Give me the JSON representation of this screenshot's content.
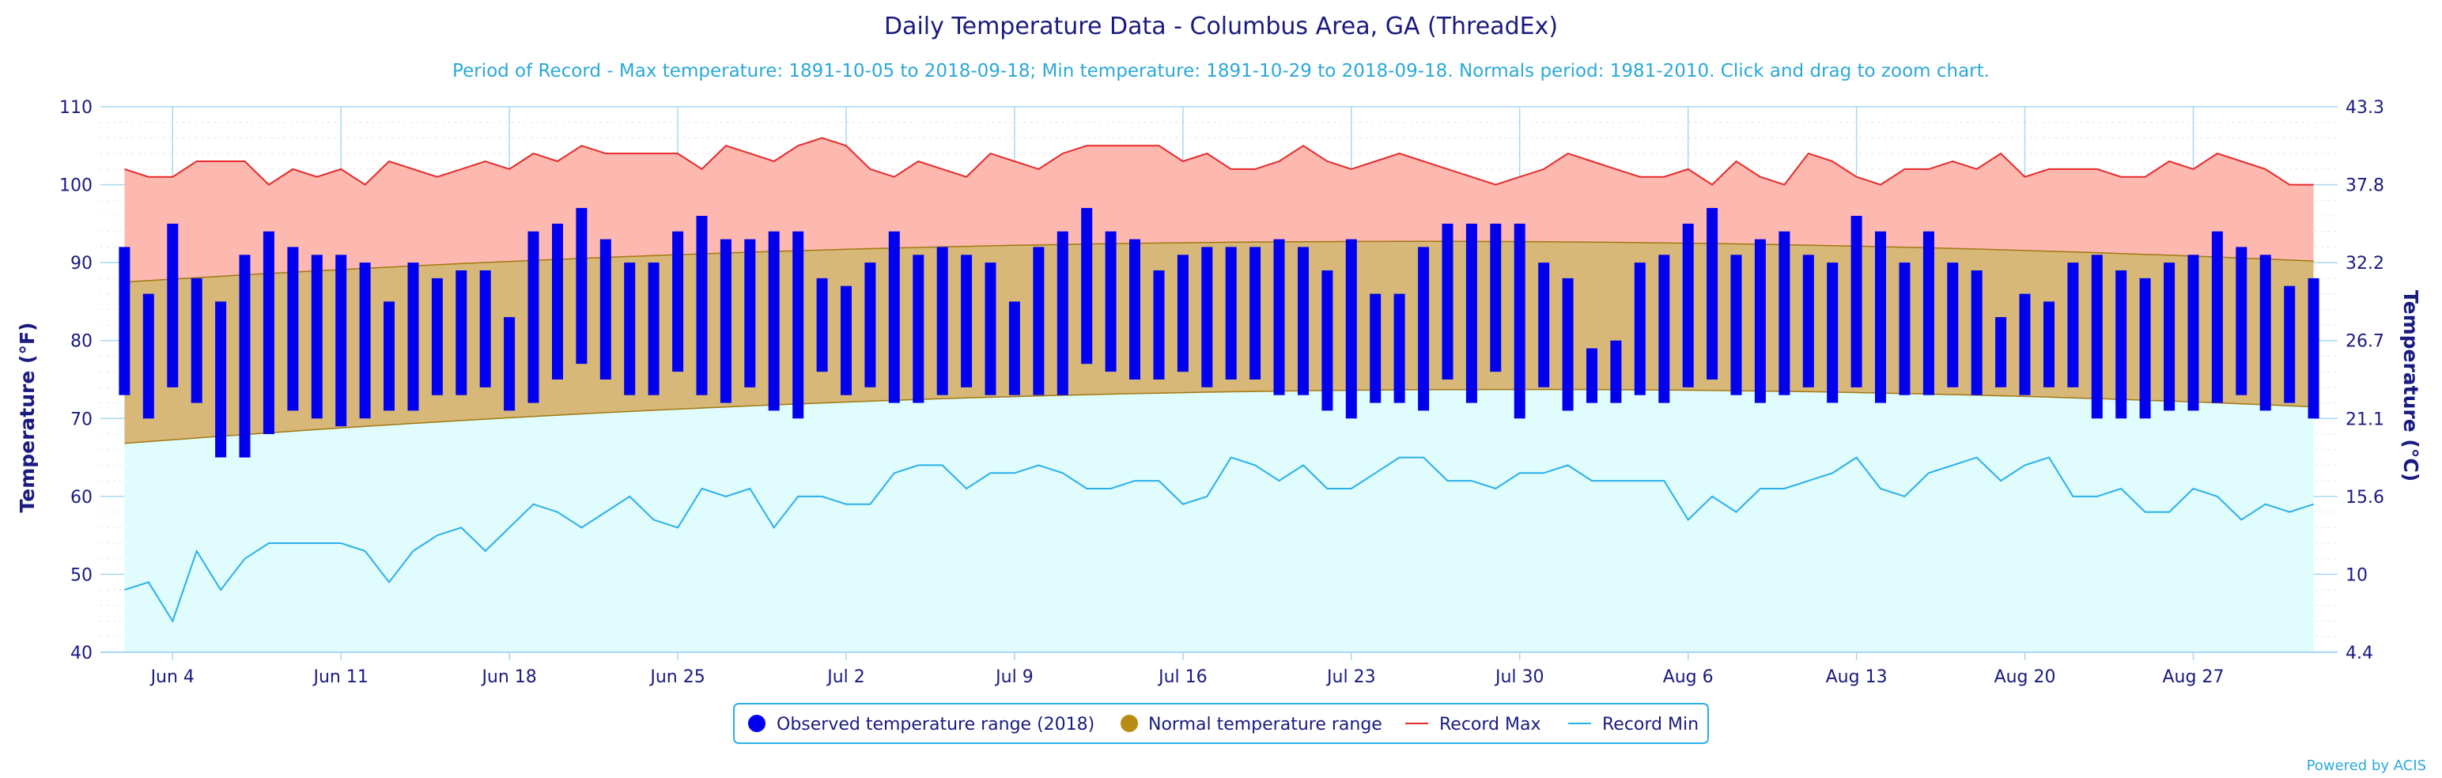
{
  "chart_data": {
    "type": "bar",
    "title": "Daily Temperature Data - Columbus Area, GA (ThreadEx)",
    "subtitle": "Period of Record - Max temperature: 1891-10-05 to 2018-09-18; Min temperature: 1891-10-29 to 2018-09-18. Normals period: 1981-2010. Click and drag to zoom chart.",
    "ylabel": "Temperature (°F)",
    "ylabel_right": "Temperature (°C)",
    "ylim": [
      40,
      110
    ],
    "yticks": [
      40,
      50,
      60,
      70,
      80,
      90,
      100,
      110
    ],
    "yticks_right": [
      "4.4",
      "10",
      "15.6",
      "21.1",
      "26.7",
      "32.2",
      "37.8",
      "43.3"
    ],
    "xticks": [
      {
        "label": "Jun 4",
        "day": 3
      },
      {
        "label": "Jun 11",
        "day": 10
      },
      {
        "label": "Jun 18",
        "day": 17
      },
      {
        "label": "Jun 25",
        "day": 24
      },
      {
        "label": "Jul 2",
        "day": 31
      },
      {
        "label": "Jul 9",
        "day": 38
      },
      {
        "label": "Jul 16",
        "day": 45
      },
      {
        "label": "Jul 23",
        "day": 52
      },
      {
        "label": "Jul 30",
        "day": 59
      },
      {
        "label": "Aug 6",
        "day": 66
      },
      {
        "label": "Aug 13",
        "day": 73
      },
      {
        "label": "Aug 20",
        "day": 80
      },
      {
        "label": "Aug 27",
        "day": 87
      }
    ],
    "grid": true,
    "legend_position": "bottom-center",
    "colors": {
      "observed": "#0000ee",
      "normal_fill": "#d8b878",
      "normal_line": "#a07810",
      "record_max_fill": "#fdb8b0",
      "record_max_line": "#e52b2b",
      "record_min_fill": "#e0fcfc",
      "record_min_line": "#2ab0e8",
      "grid": "#a8d8f0"
    },
    "series": [
      {
        "name": "Observed temperature range (2018)",
        "legend_symbol": "circle",
        "x_start_day": 1,
        "low": [
          73,
          70,
          74,
          72,
          65,
          65,
          68,
          71,
          70,
          69,
          70,
          71,
          71,
          73,
          73,
          74,
          71,
          72,
          75,
          77,
          75,
          73,
          73,
          76,
          73,
          72,
          74,
          71,
          70,
          76,
          73,
          74,
          72,
          72,
          73,
          74,
          73,
          73,
          73,
          73,
          77,
          76,
          75,
          75,
          76,
          74,
          75,
          75,
          73,
          73,
          71,
          70,
          72,
          72,
          71,
          75,
          72,
          76,
          70,
          74,
          71,
          72,
          72,
          73,
          72,
          74,
          75,
          73,
          72,
          73,
          74,
          72,
          74,
          72,
          73,
          73,
          74,
          73,
          74,
          73,
          74,
          74,
          70,
          70,
          70,
          71,
          71,
          72,
          73,
          71,
          72,
          70
        ],
        "high": [
          92,
          86,
          95,
          88,
          85,
          91,
          94,
          92,
          91,
          91,
          90,
          85,
          90,
          88,
          89,
          89,
          83,
          94,
          95,
          97,
          93,
          90,
          90,
          94,
          96,
          93,
          93,
          94,
          94,
          88,
          87,
          90,
          94,
          91,
          92,
          91,
          90,
          85,
          92,
          94,
          97,
          94,
          93,
          89,
          91,
          92,
          92,
          92,
          93,
          92,
          89,
          93,
          86,
          86,
          92,
          95,
          95,
          95,
          95,
          90,
          88,
          79,
          80,
          90,
          91,
          95,
          97,
          91,
          93,
          94,
          91,
          90,
          96,
          94,
          90,
          94,
          90,
          89,
          83,
          86,
          85,
          90,
          91,
          89,
          88,
          90,
          91,
          94,
          92,
          91,
          87,
          88
        ]
      },
      {
        "name": "Normal temperature range",
        "legend_symbol": "circle",
        "low_start": 66.8,
        "low_mid": 73.4,
        "low_end": 71.5,
        "high_start": 87.5,
        "high_mid": 92.6,
        "high_end": 90.2
      },
      {
        "name": "Record Max",
        "legend_symbol": "line",
        "x_start_day": 1,
        "values": [
          102,
          101,
          101,
          103,
          103,
          103,
          100,
          102,
          101,
          102,
          100,
          103,
          102,
          101,
          102,
          103,
          102,
          104,
          103,
          105,
          104,
          104,
          104,
          104,
          102,
          105,
          104,
          103,
          105,
          106,
          105,
          102,
          101,
          103,
          102,
          101,
          104,
          103,
          102,
          104,
          105,
          105,
          105,
          105,
          103,
          104,
          102,
          102,
          103,
          105,
          103,
          102,
          103,
          104,
          103,
          102,
          101,
          100,
          101,
          102,
          104,
          103,
          102,
          101,
          101,
          102,
          100,
          103,
          101,
          100,
          104,
          103,
          101,
          100,
          102,
          102,
          103,
          102,
          104,
          101,
          102,
          102,
          102,
          101,
          101,
          103,
          102,
          104,
          103,
          102,
          100,
          100
        ]
      },
      {
        "name": "Record Min",
        "legend_symbol": "line",
        "x_start_day": 1,
        "values": [
          48,
          49,
          44,
          53,
          48,
          52,
          54,
          54,
          54,
          54,
          53,
          49,
          53,
          55,
          56,
          53,
          56,
          59,
          58,
          56,
          58,
          60,
          57,
          56,
          61,
          60,
          61,
          56,
          60,
          60,
          59,
          59,
          63,
          64,
          64,
          61,
          63,
          63,
          64,
          63,
          61,
          61,
          62,
          62,
          59,
          60,
          65,
          64,
          62,
          64,
          61,
          61,
          63,
          65,
          65,
          62,
          62,
          61,
          63,
          63,
          64,
          62,
          62,
          62,
          62,
          57,
          60,
          58,
          61,
          61,
          62,
          63,
          65,
          61,
          60,
          63,
          64,
          65,
          62,
          64,
          65,
          60,
          60,
          61,
          58,
          58,
          61,
          60,
          57,
          59,
          58,
          59
        ]
      }
    ]
  },
  "credits": "Powered by ACIS"
}
